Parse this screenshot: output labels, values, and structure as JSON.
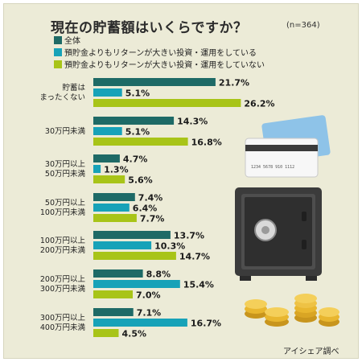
{
  "chart_data": {
    "type": "bar",
    "orientation": "horizontal",
    "title": "現在の貯蓄額はいくらですか？",
    "subtitle": "(n=364)",
    "source": "アイシェア調べ",
    "categories": [
      [
        "貯蓄は",
        "まったくない"
      ],
      [
        "30万円未満"
      ],
      [
        "30万円以上",
        "50万円未満"
      ],
      [
        "50万円以上",
        "100万円未満"
      ],
      [
        "100万円以上",
        "200万円未満"
      ],
      [
        "200万円以上",
        "300万円未満"
      ],
      [
        "300万円以上",
        "400万円未満"
      ]
    ],
    "series": [
      {
        "name": "全体",
        "color": "#1e6a66",
        "values": [
          21.7,
          14.3,
          4.7,
          7.4,
          13.7,
          8.8,
          7.1
        ]
      },
      {
        "name": "預貯金よりもリターンが大きい投資・運用をしている",
        "color": "#17a2b8",
        "values": [
          5.1,
          5.1,
          1.3,
          6.4,
          10.3,
          15.4,
          16.7
        ]
      },
      {
        "name": "預貯金よりもリターンが大きい投資・運用をしていない",
        "color": "#a8c418",
        "values": [
          26.2,
          16.8,
          5.6,
          7.7,
          14.7,
          7.0,
          4.5
        ]
      }
    ],
    "unit": "%",
    "xlim": [
      0,
      35
    ],
    "legend": "top",
    "grid": false
  },
  "icons": [
    "credit-card-icon",
    "safe-icon",
    "coins-icon"
  ]
}
